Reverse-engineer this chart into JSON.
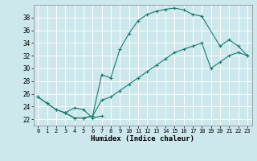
{
  "xlabel": "Humidex (Indice chaleur)",
  "bg_color": "#cce8ec",
  "grid_color": "#ffffff",
  "line_color": "#1a7a6e",
  "xlim": [
    -0.5,
    23.5
  ],
  "ylim": [
    21.0,
    40.0
  ],
  "yticks": [
    22,
    24,
    26,
    28,
    30,
    32,
    34,
    36,
    38
  ],
  "xticks": [
    0,
    1,
    2,
    3,
    4,
    5,
    6,
    7,
    8,
    9,
    10,
    11,
    12,
    13,
    14,
    15,
    16,
    17,
    18,
    19,
    20,
    21,
    22,
    23
  ],
  "line1_x": [
    0,
    1,
    2,
    3,
    4,
    5,
    6,
    7,
    8,
    9,
    10,
    11,
    12,
    13,
    14,
    15,
    16,
    17,
    18,
    20,
    21,
    22,
    23
  ],
  "line1_y": [
    25.5,
    24.5,
    23.5,
    23.0,
    22.2,
    22.2,
    22.5,
    29.0,
    28.5,
    33.0,
    35.5,
    37.5,
    38.5,
    39.0,
    39.3,
    39.5,
    39.2,
    38.5,
    38.2,
    33.5,
    34.5,
    33.5,
    32.0
  ],
  "line2_x": [
    0,
    1,
    2,
    3,
    4,
    5,
    6,
    7,
    8,
    9,
    10,
    11,
    12,
    13,
    14,
    15,
    16,
    17,
    18,
    19,
    20,
    21,
    22,
    23
  ],
  "line2_y": [
    25.5,
    24.5,
    23.5,
    23.0,
    22.2,
    22.2,
    22.5,
    25.0,
    25.5,
    26.5,
    27.5,
    28.5,
    29.5,
    30.5,
    31.5,
    32.5,
    33.0,
    33.5,
    34.0,
    30.0,
    31.0,
    32.0,
    32.5,
    32.0
  ],
  "line3_x": [
    3,
    4,
    5,
    6,
    7
  ],
  "line3_y": [
    23.0,
    23.8,
    23.5,
    22.2,
    22.5
  ]
}
